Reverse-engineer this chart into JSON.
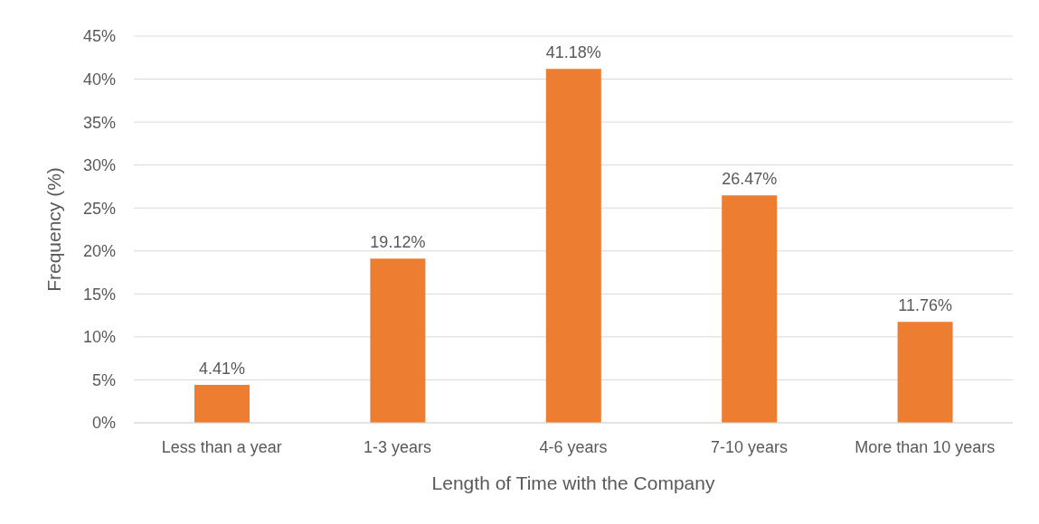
{
  "chart_data": {
    "type": "bar",
    "xlabel": "Length of Time with the Company",
    "ylabel": "Frequency (%)",
    "categories": [
      "Less than a year",
      "1-3 years",
      "4-6 years",
      "7-10 years",
      "More than 10 years"
    ],
    "values": [
      4.41,
      19.12,
      41.18,
      26.47,
      11.76
    ],
    "value_labels": [
      "4.41%",
      "19.12%",
      "41.18%",
      "26.47%",
      "11.76%"
    ],
    "color": "#ed7d31",
    "ylim": [
      0,
      45
    ],
    "yticks": [
      {
        "value": 0,
        "label": "0%"
      },
      {
        "value": 5,
        "label": "5%"
      },
      {
        "value": 10,
        "label": "10%"
      },
      {
        "value": 15,
        "label": "15%"
      },
      {
        "value": 20,
        "label": "20%"
      },
      {
        "value": 25,
        "label": "25%"
      },
      {
        "value": 30,
        "label": "30%"
      },
      {
        "value": 35,
        "label": "35%"
      },
      {
        "value": 40,
        "label": "40%"
      },
      {
        "value": 45,
        "label": "45%"
      }
    ],
    "grid": "y"
  }
}
